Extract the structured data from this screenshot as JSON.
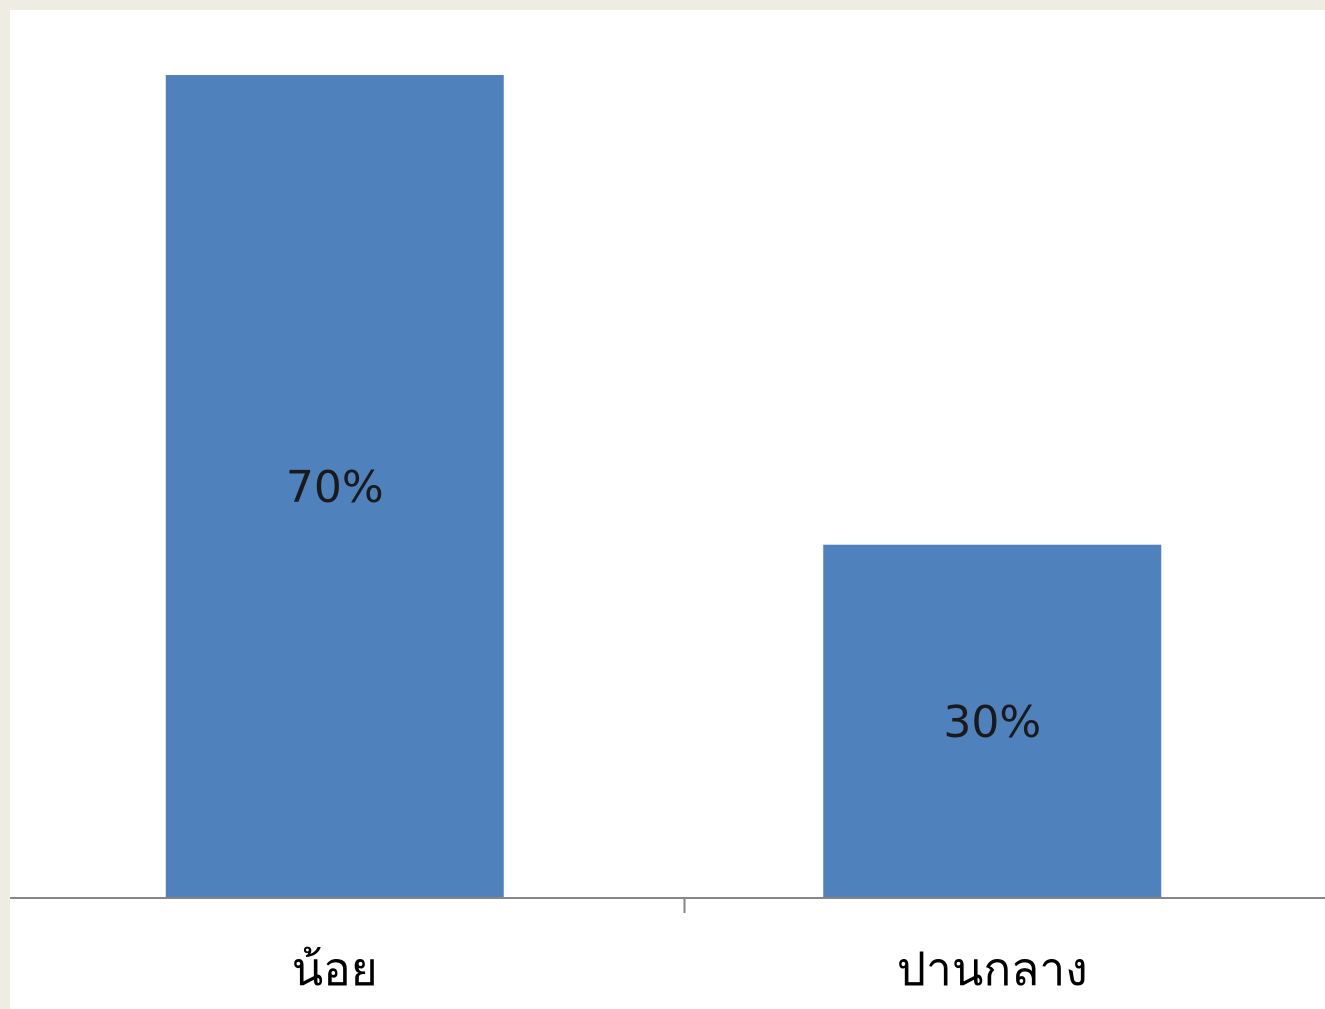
{
  "chart_data": {
    "type": "bar",
    "categories": [
      "น้อย",
      "ปานกลาง"
    ],
    "values": [
      70,
      30
    ],
    "data_labels": [
      "70%",
      "30%"
    ],
    "ylim": [
      0,
      75
    ],
    "grid": false,
    "legend": "none",
    "bar_color": "#4f81bd",
    "axis_color": "#868686"
  }
}
